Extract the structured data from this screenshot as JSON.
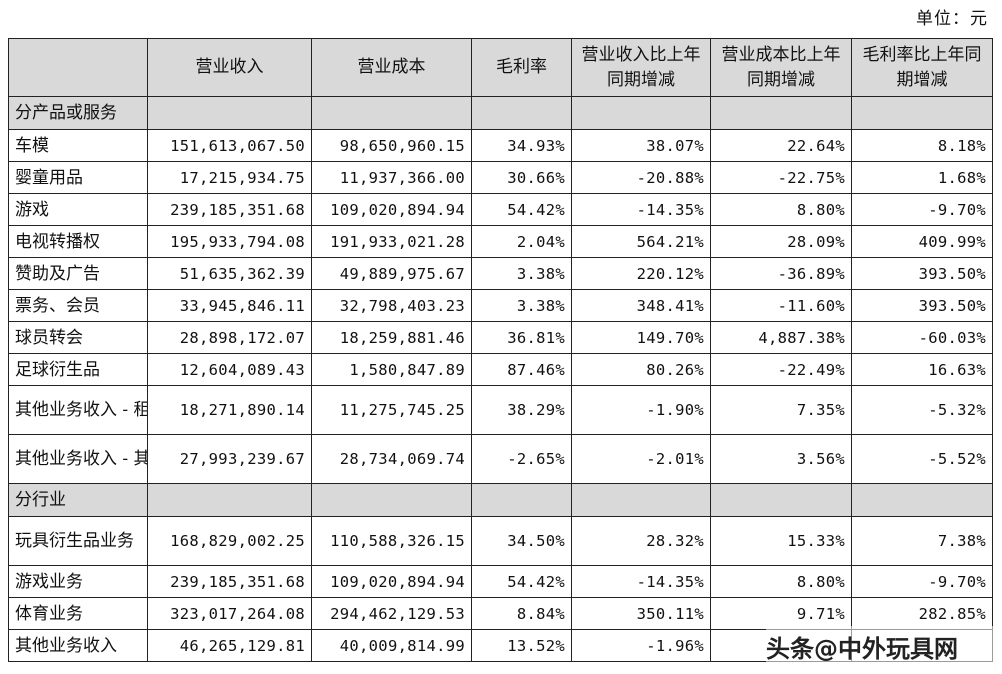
{
  "unit_label": "单位：元",
  "headers": [
    "",
    "营业收入",
    "营业成本",
    "毛利率",
    "营业收入比上年同期增减",
    "营业成本比上年同期增减",
    "毛利率比上年同期增减"
  ],
  "section_product": "分产品或服务",
  "product_rows": [
    {
      "label": "车模",
      "revenue": "151,613,067.50",
      "cost": "98,650,960.15",
      "margin": "34.93%",
      "rev_change": "38.07%",
      "cost_change": "22.64%",
      "margin_change": "8.18%"
    },
    {
      "label": "婴童用品",
      "revenue": "17,215,934.75",
      "cost": "11,937,366.00",
      "margin": "30.66%",
      "rev_change": "-20.88%",
      "cost_change": "-22.75%",
      "margin_change": "1.68%"
    },
    {
      "label": "游戏",
      "revenue": "239,185,351.68",
      "cost": "109,020,894.94",
      "margin": "54.42%",
      "rev_change": "-14.35%",
      "cost_change": "8.80%",
      "margin_change": "-9.70%"
    },
    {
      "label": "电视转播权",
      "revenue": "195,933,794.08",
      "cost": "191,933,021.28",
      "margin": "2.04%",
      "rev_change": "564.21%",
      "cost_change": "28.09%",
      "margin_change": "409.99%"
    },
    {
      "label": "赞助及广告",
      "revenue": "51,635,362.39",
      "cost": "49,889,975.67",
      "margin": "3.38%",
      "rev_change": "220.12%",
      "cost_change": "-36.89%",
      "margin_change": "393.50%"
    },
    {
      "label": "票务、会员",
      "revenue": "33,945,846.11",
      "cost": "32,798,403.23",
      "margin": "3.38%",
      "rev_change": "348.41%",
      "cost_change": "-11.60%",
      "margin_change": "393.50%"
    },
    {
      "label": "球员转会",
      "revenue": "28,898,172.07",
      "cost": "18,259,881.46",
      "margin": "36.81%",
      "rev_change": "149.70%",
      "cost_change": "4,887.38%",
      "margin_change": "-60.03%"
    },
    {
      "label": "足球衍生品",
      "revenue": "12,604,089.43",
      "cost": "1,580,847.89",
      "margin": "87.46%",
      "rev_change": "80.26%",
      "cost_change": "-22.49%",
      "margin_change": "16.63%"
    },
    {
      "label": "其他业务收入 - 租金",
      "revenue": "18,271,890.14",
      "cost": "11,275,745.25",
      "margin": "38.29%",
      "rev_change": "-1.90%",
      "cost_change": "7.35%",
      "margin_change": "-5.32%"
    },
    {
      "label": "其他业务收入 - 其他",
      "revenue": "27,993,239.67",
      "cost": "28,734,069.74",
      "margin": "-2.65%",
      "rev_change": "-2.01%",
      "cost_change": "3.56%",
      "margin_change": "-5.52%"
    }
  ],
  "section_industry": "分行业",
  "industry_rows": [
    {
      "label": "玩具衍生品业务",
      "revenue": "168,829,002.25",
      "cost": "110,588,326.15",
      "margin": "34.50%",
      "rev_change": "28.32%",
      "cost_change": "15.33%",
      "margin_change": "7.38%"
    },
    {
      "label": "游戏业务",
      "revenue": "239,185,351.68",
      "cost": "109,020,894.94",
      "margin": "54.42%",
      "rev_change": "-14.35%",
      "cost_change": "8.80%",
      "margin_change": "-9.70%"
    },
    {
      "label": "体育业务",
      "revenue": "323,017,264.08",
      "cost": "294,462,129.53",
      "margin": "8.84%",
      "rev_change": "350.11%",
      "cost_change": "9.71%",
      "margin_change": "282.85%"
    },
    {
      "label": "其他业务收入",
      "revenue": "46,265,129.81",
      "cost": "40,009,814.99",
      "margin": "13.52%",
      "rev_change": "-1.96%",
      "cost_change": "",
      "margin_change": ""
    }
  ],
  "watermark": "头条@中外玩具网"
}
